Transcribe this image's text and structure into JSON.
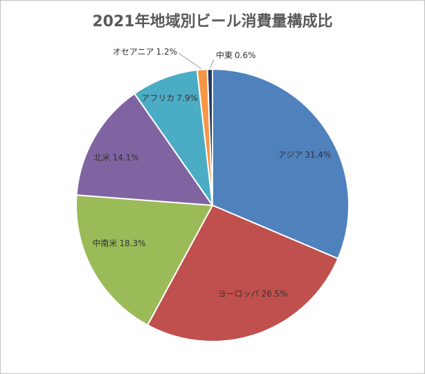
{
  "chart_data": {
    "type": "pie",
    "title": "2021年地域別ビール消費量構成比",
    "categories": [
      "アジア",
      "ヨーロッパ",
      "中南米",
      "北米",
      "アフリカ",
      "オセアニア",
      "中東"
    ],
    "values": [
      31.4,
      26.5,
      18.3,
      14.1,
      7.9,
      1.2,
      0.6
    ],
    "value_labels": [
      "31.4%",
      "26.5%",
      "18.3%",
      "14.1%",
      "7.9%",
      "1.2%",
      "0.6%"
    ],
    "colors": [
      "#4f81bd",
      "#c0504d",
      "#9bbb59",
      "#8064a2",
      "#4bacc6",
      "#f79646",
      "#1f3864"
    ]
  }
}
